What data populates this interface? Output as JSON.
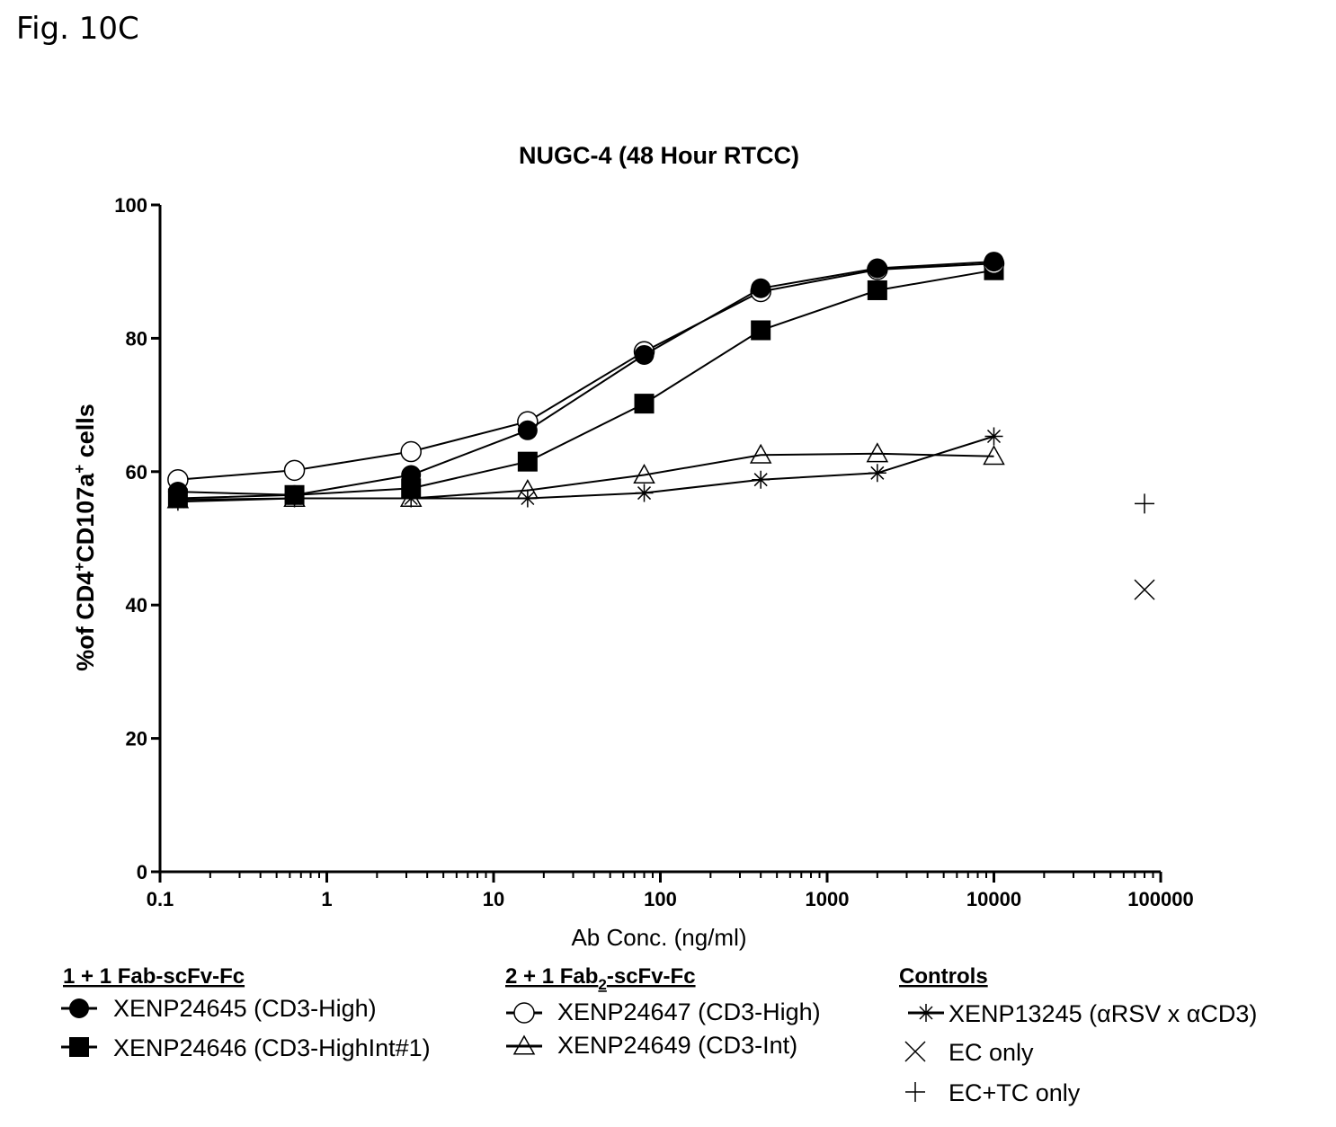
{
  "figure_label": "Fig. 10C",
  "chart_data": {
    "type": "scatter",
    "title": "NUGC-4 (48 Hour RTCC)",
    "xlabel": "Ab Conc. (ng/ml)",
    "ylabel_parts": {
      "a": "%of CD4",
      "sup1": "+",
      "b": "CD107a",
      "sup2": "+",
      "c": " cells"
    },
    "x_scale": "log",
    "xlim": [
      0.1,
      100000
    ],
    "ylim": [
      0,
      100
    ],
    "x_ticks": [
      0.1,
      1,
      10,
      100,
      1000,
      10000,
      100000
    ],
    "x_tick_labels": [
      "0.1",
      "1",
      "10",
      "100",
      "1000",
      "10000",
      "100000"
    ],
    "y_ticks": [
      0,
      20,
      40,
      60,
      80,
      100
    ],
    "y_tick_labels": [
      "0",
      "20",
      "40",
      "60",
      "80",
      "100"
    ],
    "grid": false,
    "x": [
      0.128,
      0.64,
      3.2,
      16,
      80,
      400,
      2000,
      10000
    ],
    "series": [
      {
        "name": "XENP24645 (CD3-High)",
        "marker": "filled-circle",
        "line": true,
        "values": [
          57.0,
          56.5,
          59.5,
          66.2,
          77.5,
          87.5,
          90.5,
          91.5
        ]
      },
      {
        "name": "XENP24646 (CD3-HighInt#1)",
        "marker": "filled-square",
        "line": true,
        "values": [
          56.0,
          56.5,
          57.5,
          61.5,
          70.2,
          81.2,
          87.2,
          90.2
        ]
      },
      {
        "name": "XENP24647 (CD3-High)",
        "marker": "open-circle",
        "line": true,
        "values": [
          58.8,
          60.2,
          63.0,
          67.5,
          78.0,
          87.0,
          90.3,
          91.2
        ]
      },
      {
        "name": "XENP24649 (CD3-Int)",
        "marker": "open-triangle",
        "line": true,
        "values": [
          55.8,
          56.0,
          56.0,
          57.2,
          59.5,
          62.5,
          62.7,
          62.3
        ]
      },
      {
        "name": "XENP13245 (αRSV x αCD3)",
        "marker": "asterisk",
        "line": true,
        "values": [
          55.5,
          56.0,
          56.0,
          56.0,
          56.8,
          58.8,
          59.8,
          65.3
        ]
      }
    ],
    "control_points": [
      {
        "name": "EC only",
        "marker": "x-cross",
        "x": 80000,
        "y": 42.3
      },
      {
        "name": "EC+TC only",
        "marker": "plus",
        "x": 80000,
        "y": 55.2
      }
    ],
    "legend": {
      "groups": [
        {
          "heading": "1 + 1 Fab-scFv-Fc",
          "entries": [
            {
              "label": "XENP24645 (CD3-High)",
              "marker": "filled-circle"
            },
            {
              "label": "XENP24646 (CD3-HighInt#1)",
              "marker": "filled-square"
            }
          ]
        },
        {
          "heading_parts": {
            "a": "2 + 1 Fab",
            "sub": "2",
            "b": "-scFv-Fc"
          },
          "entries": [
            {
              "label": "XENP24647 (CD3-High)",
              "marker": "open-circle"
            },
            {
              "label": "XENP24649 (CD3-Int)",
              "marker": "open-triangle"
            }
          ]
        },
        {
          "heading": "Controls",
          "entries": [
            {
              "label": "XENP13245 (αRSV x αCD3)",
              "marker": "asterisk"
            },
            {
              "label": "EC only",
              "marker": "x-cross"
            },
            {
              "label": "EC+TC only",
              "marker": "plus"
            }
          ]
        }
      ],
      "placement": "bottom"
    }
  }
}
